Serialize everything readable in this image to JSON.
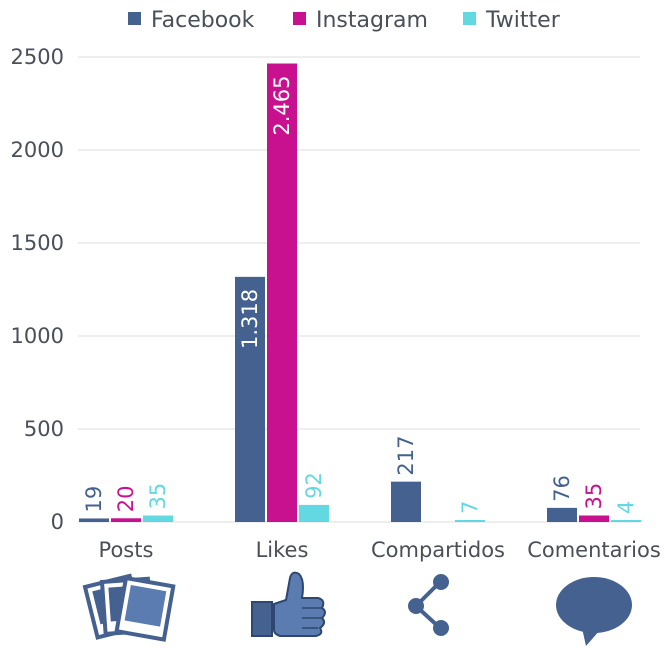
{
  "chart_data": {
    "type": "bar",
    "categories": [
      "Posts",
      "Likes",
      "Compartidos",
      "Comentarios"
    ],
    "series": [
      {
        "name": "Facebook",
        "color": "#44618f",
        "values": [
          19,
          1318,
          217,
          76
        ],
        "labels": [
          "19",
          "1.318",
          "217",
          "76"
        ]
      },
      {
        "name": "Instagram",
        "color": "#c8118e",
        "values": [
          20,
          2465,
          0,
          35
        ],
        "labels": [
          "20",
          "2.465",
          "",
          "35"
        ]
      },
      {
        "name": "Twitter",
        "color": "#62d8e0",
        "values": [
          35,
          92,
          7,
          4
        ],
        "labels": [
          "35",
          "92",
          "7",
          "4"
        ]
      }
    ],
    "ylim": [
      0,
      2500
    ],
    "yticks": [
      0,
      500,
      1000,
      1500,
      2000,
      2500
    ],
    "grid": true,
    "legend_position": "top",
    "category_icons": [
      "photos-icon",
      "thumbs-up-icon",
      "share-icon",
      "speech-bubble-icon"
    ]
  }
}
